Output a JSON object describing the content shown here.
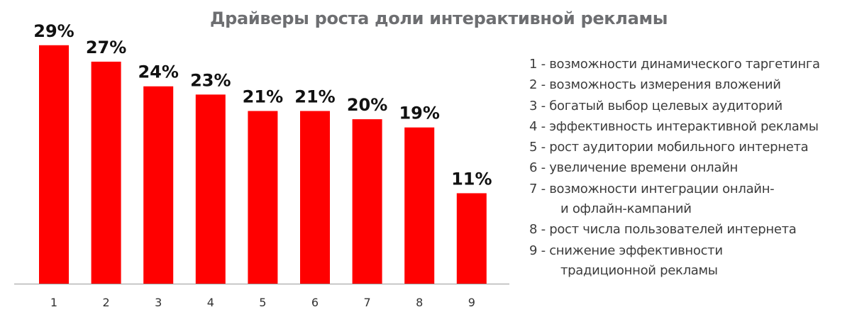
{
  "chart_data": {
    "type": "bar",
    "title": "Драйверы роста доли интерактивной рекламы",
    "categories": [
      "1",
      "2",
      "3",
      "4",
      "5",
      "6",
      "7",
      "8",
      "9"
    ],
    "values": [
      29,
      27,
      24,
      23,
      21,
      21,
      20,
      19,
      11
    ],
    "value_labels": [
      "29%",
      "27%",
      "24%",
      "23%",
      "21%",
      "21%",
      "20%",
      "19%",
      "11%"
    ],
    "ylim": [
      0,
      34.5
    ],
    "bar_color": "#ff0000",
    "axis_color": "#9b9b9b",
    "legend_position": "right",
    "legend": [
      {
        "line1": "1 - возможности динамического таргетинга"
      },
      {
        "line1": "2 - возможность измерения вложений"
      },
      {
        "line1": "3 - богатый выбор целевых аудиторий"
      },
      {
        "line1": "4 - эффективность интерактивной рекламы"
      },
      {
        "line1": "5 - рост аудитории мобильного интернета"
      },
      {
        "line1": "6 - увеличение времени онлайн"
      },
      {
        "line1": "7 - возможности интеграции онлайн-",
        "line2": "и офлайн-кампаний"
      },
      {
        "line1": "8 - рост числа пользователей интернета"
      },
      {
        "line1": "9 - снижение эффективности",
        "line2": "традиционной рекламы"
      }
    ]
  }
}
